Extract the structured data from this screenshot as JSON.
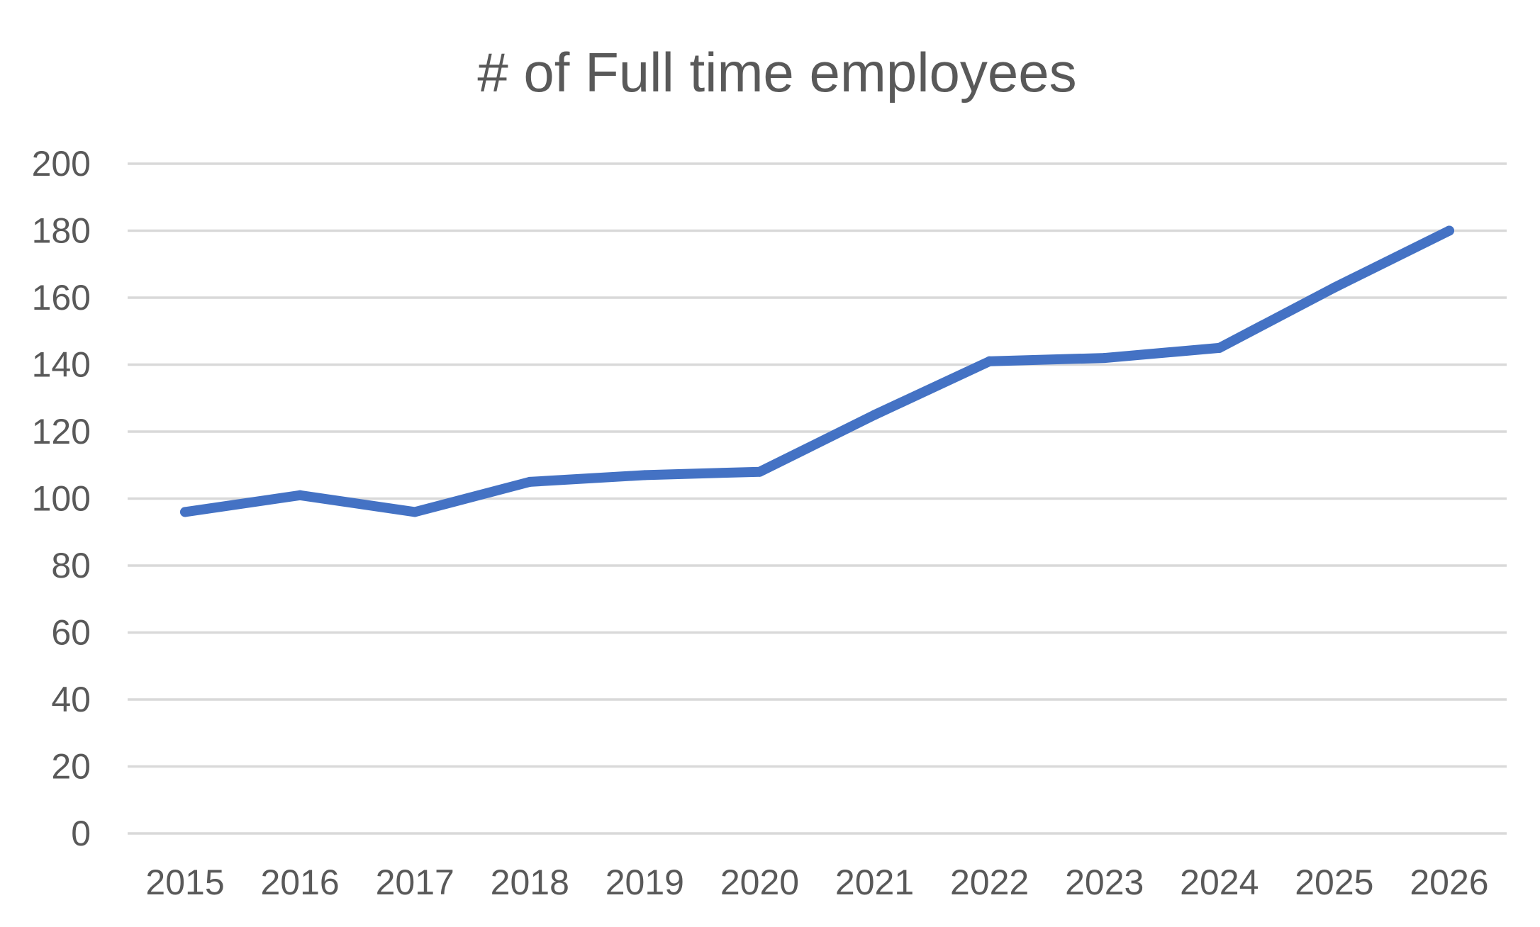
{
  "chart_data": {
    "type": "line",
    "title": "# of Full time employees",
    "xlabel": "",
    "ylabel": "",
    "categories": [
      "2015",
      "2016",
      "2017",
      "2018",
      "2019",
      "2020",
      "2021",
      "2022",
      "2023",
      "2024",
      "2025",
      "2026"
    ],
    "series": [
      {
        "values": [
          96,
          101,
          96,
          105,
          107,
          108,
          125,
          141,
          142,
          145,
          163,
          180
        ],
        "color": "#4472c4"
      }
    ],
    "ylim": [
      0,
      200
    ],
    "yticks": [
      0,
      20,
      40,
      60,
      80,
      100,
      120,
      140,
      160,
      180,
      200
    ],
    "grid": true,
    "legend": "none"
  }
}
